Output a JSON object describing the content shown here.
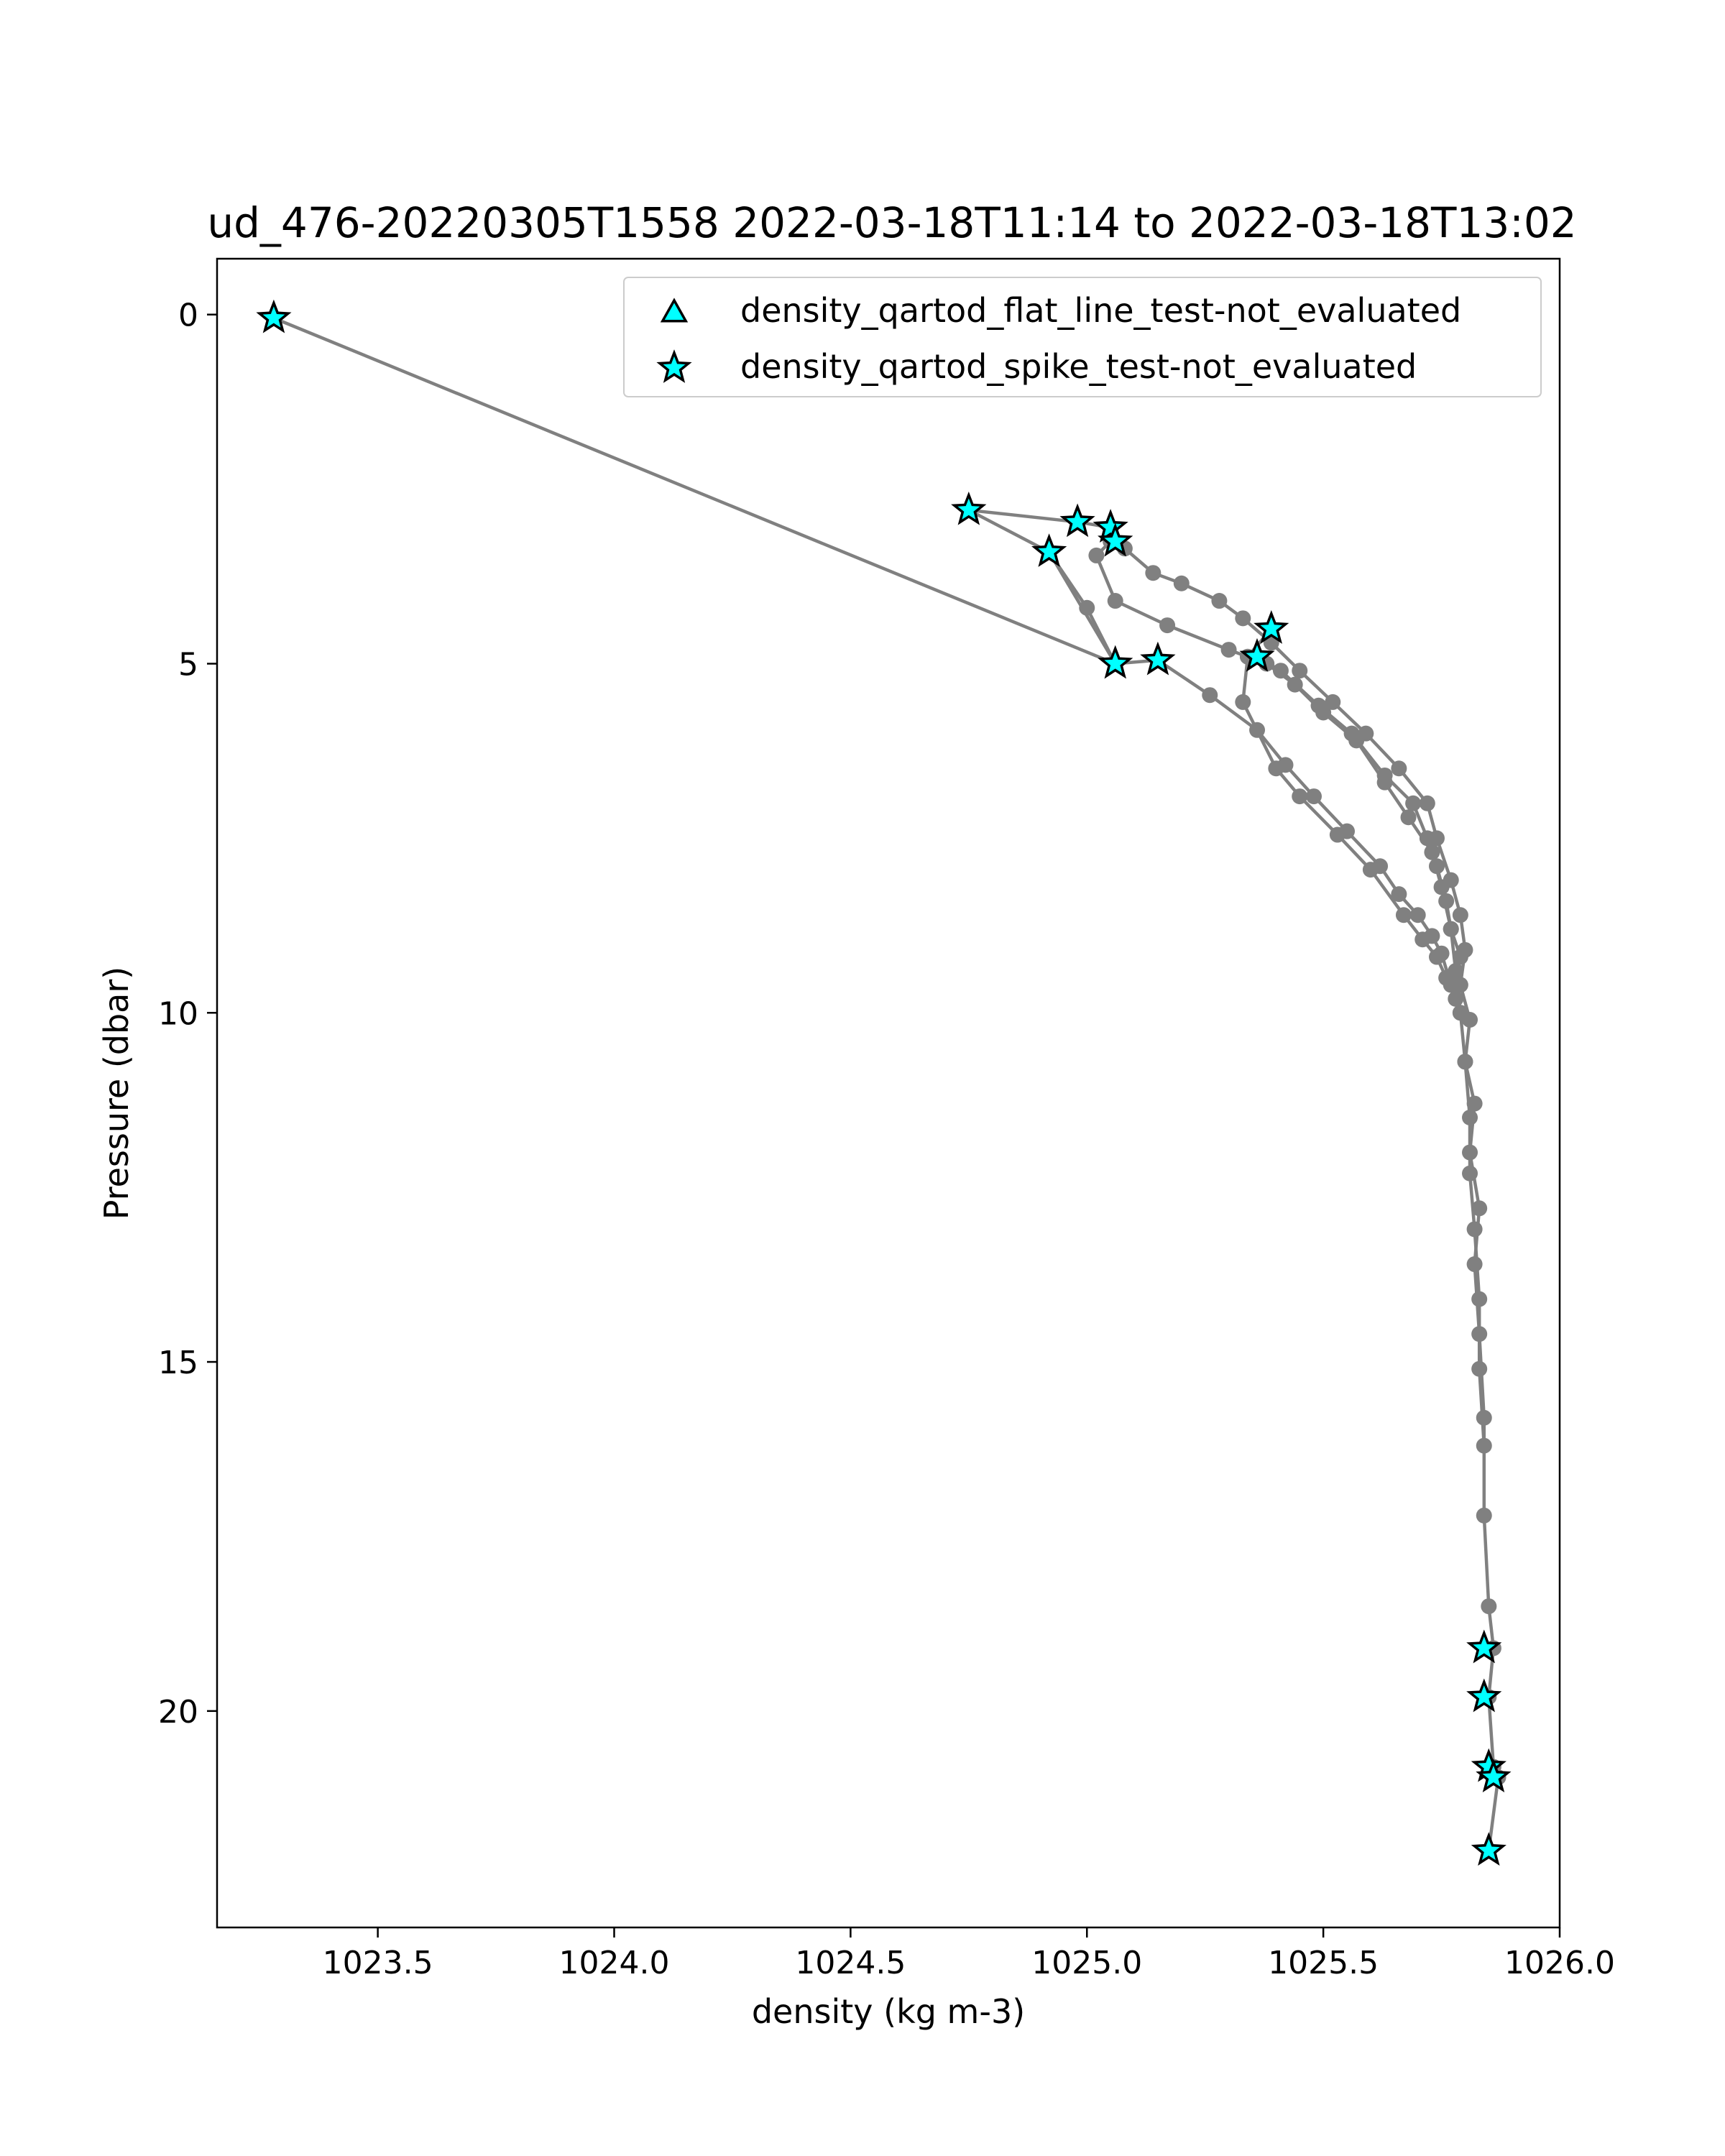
{
  "chart_data": {
    "type": "line",
    "title": "ud_476-20220305T1558 2022-03-18T11:14 to 2022-03-18T13:02",
    "xlabel": "density (kg m-3)",
    "ylabel": "Pressure (dbar)",
    "xlim": [
      1023.16,
      1026.0
    ],
    "ylim": [
      23.1,
      -0.8
    ],
    "y_inverted": true,
    "grid": false,
    "legend_position": "top-right",
    "x_ticks": [
      1023.5,
      1024.0,
      1024.5,
      1025.0,
      1025.5,
      1026.0
    ],
    "x_tick_labels": [
      "1023.5",
      "1024.0",
      "1024.5",
      "1025.0",
      "1025.5",
      "1026.0"
    ],
    "y_ticks": [
      0,
      5,
      10,
      15,
      20
    ],
    "y_tick_labels": [
      "0",
      "5",
      "10",
      "15",
      "20"
    ],
    "colors": {
      "profile": "#808080",
      "flag_fill": "#00ffff",
      "flag_edge": "#000000"
    },
    "series": [
      {
        "name": "",
        "marker": "circle",
        "color": "#808080",
        "x": [
          1023.28,
          1025.06,
          1024.92,
          1024.75,
          1024.98,
          1025.05,
          1025.08,
          1025.14,
          1025.2,
          1025.28,
          1025.33,
          1025.39,
          1025.45,
          1025.52,
          1025.59,
          1025.66,
          1025.72,
          1025.74,
          1025.77,
          1025.79,
          1025.8,
          1025.79,
          1025.81,
          1025.8,
          1025.82,
          1025.81,
          1025.83,
          1025.82,
          1025.83,
          1025.84,
          1025.84,
          1025.85,
          1025.86,
          1025.85,
          1025.86,
          1025.87,
          1025.85
        ],
        "y": [
          0.05,
          5.0,
          3.4,
          2.8,
          2.97,
          3.05,
          3.35,
          3.7,
          3.85,
          4.1,
          4.35,
          4.7,
          5.1,
          5.55,
          6.0,
          6.5,
          7.0,
          7.5,
          8.1,
          8.6,
          9.1,
          9.6,
          10.1,
          10.7,
          11.3,
          12.0,
          12.8,
          13.6,
          14.6,
          15.8,
          17.2,
          18.5,
          19.1,
          19.8,
          20.8,
          20.95,
          22.0
        ]
      },
      {
        "name": "",
        "marker": "circle",
        "color": "#808080",
        "x": [
          1025.05,
          1025.02,
          1025.06,
          1025.17,
          1025.3,
          1025.38,
          1025.44,
          1025.5,
          1025.57,
          1025.63,
          1025.68,
          1025.73,
          1025.75,
          1025.77,
          1025.78,
          1025.79,
          1025.8,
          1025.81,
          1025.81,
          1025.82,
          1025.83,
          1025.83,
          1025.84
        ],
        "y": [
          3.25,
          3.45,
          4.1,
          4.45,
          4.8,
          5.0,
          5.3,
          5.7,
          6.1,
          6.7,
          7.2,
          7.7,
          8.2,
          8.8,
          9.4,
          10.0,
          10.7,
          11.5,
          12.3,
          13.1,
          14.1,
          15.1,
          16.2
        ]
      },
      {
        "name": "",
        "marker": "circle",
        "color": "#808080",
        "x": [
          1024.92,
          1025.0,
          1025.06,
          1025.15,
          1025.26,
          1025.36,
          1025.42,
          1025.48,
          1025.55,
          1025.62,
          1025.66,
          1025.7,
          1025.73,
          1025.75,
          1025.77,
          1025.79
        ],
        "y": [
          3.4,
          4.2,
          5.0,
          4.95,
          5.45,
          5.95,
          6.45,
          6.9,
          7.4,
          7.9,
          8.3,
          8.6,
          8.9,
          9.15,
          9.6,
          10.0
        ]
      },
      {
        "name": "",
        "marker": "circle",
        "color": "#808080",
        "x": [
          1025.39,
          1025.34,
          1025.33,
          1025.4,
          1025.45,
          1025.53,
          1025.6,
          1025.67,
          1025.71,
          1025.74,
          1025.76,
          1025.78
        ],
        "y": [
          4.5,
          4.9,
          5.55,
          6.5,
          6.9,
          7.45,
          7.95,
          8.6,
          8.95,
          9.2,
          9.5,
          9.8
        ]
      },
      {
        "name": "",
        "marker": "circle",
        "color": "#808080",
        "x": [
          1025.36,
          1025.41,
          1025.49,
          1025.56,
          1025.63,
          1025.69,
          1025.72,
          1025.74,
          1025.76,
          1025.77,
          1025.79
        ],
        "y": [
          4.9,
          5.1,
          5.6,
          6.0,
          6.6,
          7.0,
          7.5,
          7.9,
          8.4,
          8.8,
          9.2
        ]
      },
      {
        "name": "density_qartod_flat_line_test-not_evaluated",
        "marker": "triangle",
        "color": "#00ffff",
        "x": [],
        "y": []
      },
      {
        "name": "density_qartod_spike_test-not_evaluated",
        "marker": "star",
        "color": "#00ffff",
        "x": [
          1023.28,
          1024.75,
          1024.98,
          1025.05,
          1025.06,
          1024.92,
          1025.39,
          1025.36,
          1025.15,
          1025.06,
          1025.84,
          1025.84,
          1025.85,
          1025.86,
          1025.85
        ],
        "y": [
          0.05,
          2.8,
          2.97,
          3.05,
          3.25,
          3.4,
          4.5,
          4.9,
          4.95,
          5.0,
          19.1,
          19.8,
          20.8,
          20.95,
          22.0
        ]
      }
    ]
  }
}
